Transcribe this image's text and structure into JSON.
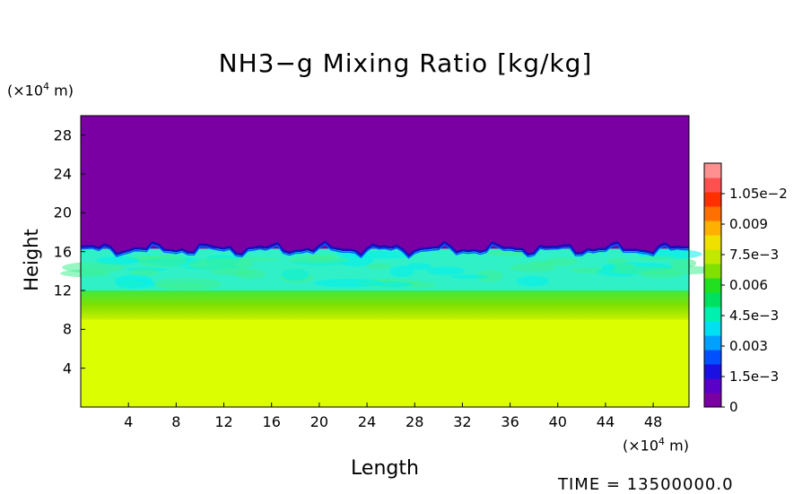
{
  "chart_data": {
    "type": "heatmap",
    "title": "NH3−g Mixing Ratio [kg/kg]",
    "xlabel": "Length",
    "ylabel": "Height",
    "x_unit_prefix": "(×10",
    "x_unit_exp": "4",
    "x_unit_suffix": " m)",
    "y_unit_prefix": "(×10",
    "y_unit_exp": "4",
    "y_unit_suffix": " m)",
    "xlim": [
      0,
      51
    ],
    "ylim": [
      0,
      30
    ],
    "xticks": [
      "4",
      "8",
      "12",
      "16",
      "20",
      "24",
      "28",
      "32",
      "36",
      "40",
      "44",
      "48"
    ],
    "yticks": [
      "4",
      "8",
      "12",
      "16",
      "20",
      "24",
      "28"
    ],
    "colorbar": {
      "range": [
        0,
        0.012
      ],
      "labels": [
        "1.05e−2",
        "0.009",
        "7.5e−3",
        "0.006",
        "4.5e−3",
        "0.003",
        "1.5e−3",
        "0"
      ],
      "label_values": [
        0.0105,
        0.009,
        0.0075,
        0.006,
        0.0045,
        0.003,
        0.0015,
        0
      ],
      "colors": [
        "#7b00a3",
        "#5a00c8",
        "#1a10e0",
        "#0050ff",
        "#00a0ff",
        "#00e0f0",
        "#00f0b0",
        "#00e060",
        "#20e020",
        "#80e000",
        "#c0e800",
        "#f0e000",
        "#ffb000",
        "#ff7000",
        "#ff3000",
        "#ff5050",
        "#ff9090"
      ]
    },
    "field": {
      "description_bands_height_x1e4m": [
        {
          "from": 0,
          "to": 9,
          "value": 0.0076
        },
        {
          "from": 9,
          "to": 12,
          "value": 0.0065
        },
        {
          "from": 12,
          "to": 16.3,
          "value": 0.0035
        },
        {
          "from": 16.3,
          "to": 30,
          "value": 0
        }
      ]
    },
    "time_label": "TIME = 13500000.0"
  }
}
